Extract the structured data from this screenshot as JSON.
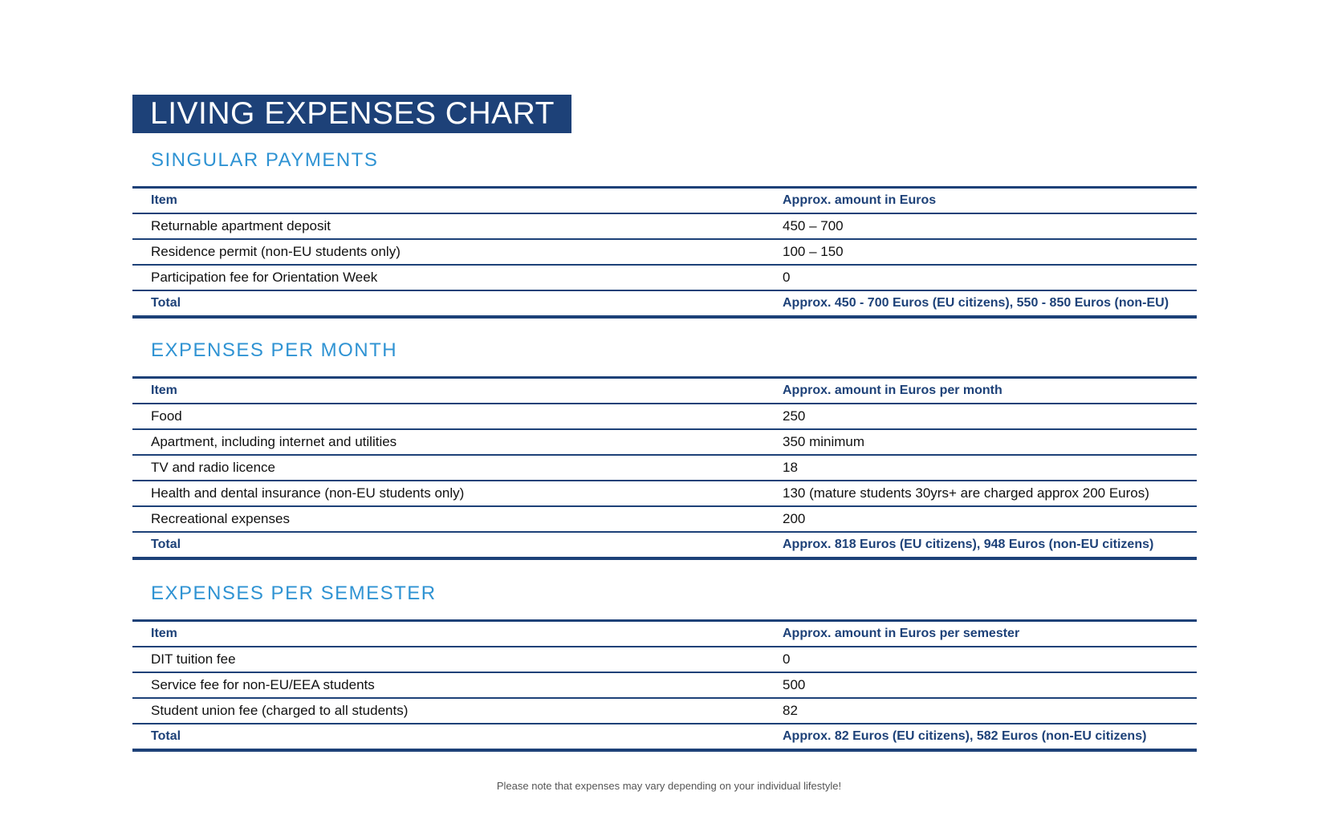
{
  "title": "LIVING EXPENSES CHART",
  "sections": [
    {
      "heading": "SINGULAR PAYMENTS",
      "header": [
        "Item",
        "Approx. amount in Euros"
      ],
      "rows": [
        [
          "Returnable apartment deposit",
          "450 – 700"
        ],
        [
          "Residence permit (non-EU students only)",
          "100 – 150"
        ],
        [
          "Participation fee for Orientation Week",
          "0"
        ]
      ],
      "total": [
        "Total",
        "Approx. 450 - 700 Euros (EU citizens), 550 - 850 Euros (non-EU)"
      ]
    },
    {
      "heading": "EXPENSES PER MONTH",
      "header": [
        "Item",
        "Approx. amount in Euros per month"
      ],
      "rows": [
        [
          "Food",
          "250"
        ],
        [
          "Apartment, including internet and utilities",
          "350 minimum"
        ],
        [
          "TV and radio licence",
          "18"
        ],
        [
          "Health and dental insurance (non-EU students only)",
          "130 (mature students 30yrs+ are charged approx 200 Euros)"
        ],
        [
          "Recreational expenses",
          "200"
        ]
      ],
      "total": [
        "Total",
        "Approx. 818 Euros (EU citizens), 948 Euros (non-EU citizens)"
      ]
    },
    {
      "heading": "EXPENSES PER SEMESTER",
      "header": [
        "Item",
        "Approx. amount in Euros per semester"
      ],
      "rows": [
        [
          "DIT tuition fee",
          "0"
        ],
        [
          "Service fee for non-EU/EEA students",
          "500"
        ],
        [
          "Student union fee (charged to all students)",
          "82"
        ]
      ],
      "total": [
        "Total",
        "Approx. 82 Euros (EU citizens), 582 Euros (non-EU citizens)"
      ]
    }
  ],
  "footer": "Please note that expenses may vary depending on your individual lifestyle!"
}
